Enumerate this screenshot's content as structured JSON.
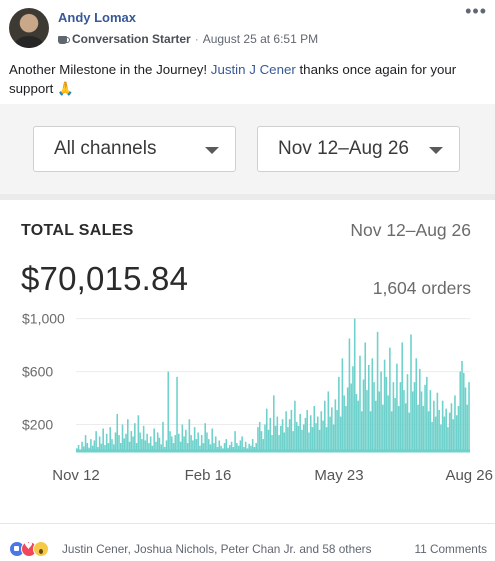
{
  "post": {
    "author": "Andy Lomax",
    "badge": "Conversation Starter",
    "timestamp": "August 25 at 6:51 PM",
    "text_before": "Another Milestone in the Journey! ",
    "mention": "Justin J Cener",
    "text_after": " thanks once again for your support 🙏",
    "more_icon": "more-options-icon"
  },
  "screenshot": {
    "channel_filter": "All channels",
    "date_filter": "Nov 12–Aug 26",
    "card_title": "TOTAL SALES",
    "card_range": "Nov 12–Aug 26",
    "total": "$70,015.84",
    "orders": "1,604 orders"
  },
  "chart_data": {
    "type": "bar",
    "x_ticks": [
      "Nov 12",
      "Feb 16",
      "May 23",
      "Aug 26"
    ],
    "y_ticks": [
      "$1,000",
      "$600",
      "$200"
    ],
    "y_tick_values": [
      1000,
      600,
      200
    ],
    "ylim": [
      0,
      1050
    ],
    "bar_color": "#6ed1cb",
    "values": [
      20,
      45,
      10,
      70,
      35,
      120,
      60,
      25,
      90,
      40,
      80,
      150,
      30,
      110,
      55,
      170,
      45,
      130,
      60,
      180,
      90,
      50,
      140,
      280,
      120,
      60,
      200,
      95,
      130,
      240,
      70,
      150,
      110,
      210,
      60,
      270,
      140,
      90,
      190,
      80,
      130,
      60,
      110,
      40,
      170,
      70,
      140,
      100,
      50,
      220,
      30,
      80,
      600,
      150,
      110,
      60,
      120,
      560,
      130,
      70,
      200,
      110,
      160,
      60,
      240,
      120,
      80,
      180,
      90,
      140,
      40,
      120,
      60,
      210,
      140,
      90,
      50,
      170,
      60,
      110,
      30,
      80,
      40,
      20,
      60,
      90,
      25,
      45,
      70,
      30,
      150,
      60,
      40,
      80,
      110,
      30,
      70,
      20,
      55,
      40,
      90,
      30,
      60,
      180,
      220,
      150,
      90,
      200,
      320,
      160,
      250,
      120,
      420,
      190,
      260,
      120,
      190,
      240,
      140,
      300,
      180,
      240,
      310,
      150,
      380,
      220,
      190,
      280,
      160,
      200,
      250,
      310,
      140,
      270,
      180,
      340,
      210,
      260,
      160,
      300,
      230,
      380,
      180,
      450,
      260,
      330,
      200,
      390,
      310,
      560,
      260,
      700,
      420,
      340,
      480,
      850,
      510,
      640,
      1000,
      430,
      380,
      720,
      300,
      540,
      820,
      460,
      650,
      300,
      700,
      520,
      380,
      900,
      450,
      600,
      350,
      690,
      560,
      420,
      780,
      300,
      520,
      400,
      660,
      340,
      520,
      820,
      460,
      360,
      580,
      290,
      880,
      450,
      520,
      700,
      350,
      620,
      450,
      340,
      500,
      560,
      300,
      460,
      220,
      380,
      260,
      440,
      310,
      200,
      380,
      260,
      320,
      180,
      290,
      360,
      240,
      420,
      270,
      340,
      600,
      680,
      590,
      480,
      350,
      520
    ]
  },
  "reactions": {
    "icons": [
      "like-reaction-icon",
      "love-reaction-icon",
      "wow-reaction-icon"
    ],
    "names": "Justin Cener, Joshua Nichols, Peter Chan Jr. and 58 others",
    "comments": "11 Comments"
  }
}
